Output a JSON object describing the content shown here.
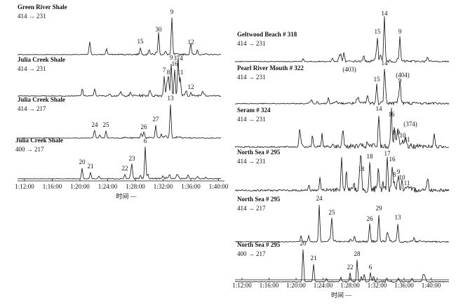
{
  "panels": [
    {
      "title": "Green River Shale",
      "transition": "414 → 231",
      "peaks": [
        "15",
        "30",
        "9",
        "12"
      ]
    },
    {
      "title": "Julia Creek Shale",
      "transition": "414 → 231",
      "peaks": [
        "7",
        "8",
        "9",
        "374",
        "16",
        "11",
        "12"
      ]
    },
    {
      "title": "Julia Creek Shale",
      "transition": "414 → 217",
      "peaks": [
        "13",
        "24",
        "25",
        "26",
        "27"
      ]
    },
    {
      "title": "Julia Creek Shale",
      "transition": "400 → 217",
      "peaks": [
        "6",
        "20",
        "21",
        "22",
        "23"
      ]
    },
    {
      "title": "Geltwood Beach # 318",
      "transition": "414 → 231",
      "peaks": [
        "15",
        "14",
        "9"
      ]
    },
    {
      "title": "Pearl River Mouth # 322",
      "transition": "414 → 231",
      "peaks": [
        "(403)",
        "14",
        "(404)",
        "15",
        "9"
      ]
    },
    {
      "title": "Seram # 324",
      "transition": "414 → 231",
      "peaks": [
        "14",
        "16",
        "(374)",
        "8",
        "9",
        "10",
        "11"
      ]
    },
    {
      "title": "North Sea # 295",
      "transition": "414 → 231",
      "peaks": [
        "18",
        "18",
        "17",
        "16",
        "8",
        "9",
        "10",
        "11"
      ]
    },
    {
      "title": "North Sea # 295",
      "transition": "414 → 217",
      "peaks": [
        "24",
        "25",
        "26",
        "29",
        "13"
      ]
    },
    {
      "title": "North Sea # 295",
      "transition": "400 → 217",
      "peaks": [
        "20",
        "21",
        "22",
        "28",
        "6"
      ]
    }
  ],
  "left_axis": {
    "ticks": [
      "1:12:00",
      "1:16:00",
      "1:20:00",
      "1:24:00",
      "1:28:00",
      "1:32:00",
      "1:36:00",
      "1:40:00"
    ],
    "label": "时间 —"
  },
  "right_axis": {
    "ticks": [
      "1:12:00",
      "1:16:00",
      "1:20:00",
      "1:24:00",
      "1:28:00",
      "1:32:00",
      "1:36:00",
      "1:40:00"
    ],
    "label": "时间 —"
  }
}
